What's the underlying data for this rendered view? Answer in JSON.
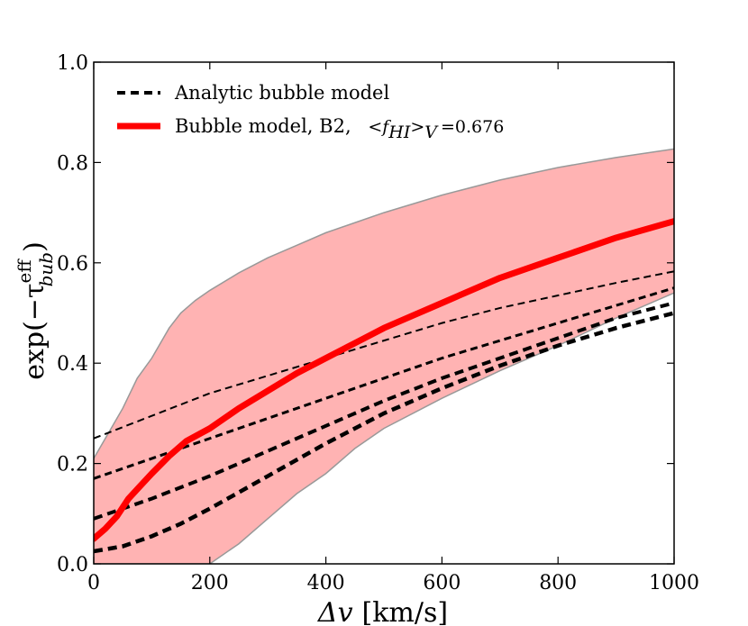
{
  "chart_data": {
    "type": "line",
    "xlabel_main": "Δv",
    "xlabel_unit": "[km/s]",
    "ylabel_main": "exp(−τ",
    "ylabel_sup": "eff",
    "ylabel_sub": "bub",
    "ylabel_close": ")",
    "xlim": [
      0,
      1000
    ],
    "ylim": [
      0.0,
      1.0
    ],
    "xticks": [
      0,
      200,
      400,
      600,
      800,
      1000
    ],
    "xtick_labels": [
      "0",
      "200",
      "400",
      "600",
      "800",
      "1000"
    ],
    "yticks": [
      0.0,
      0.2,
      0.4,
      0.6,
      0.8,
      1.0
    ],
    "ytick_labels": [
      "0.0",
      "0.2",
      "0.4",
      "0.6",
      "0.8",
      "1.0"
    ],
    "grid": false,
    "legend_placement": "top-left",
    "legend": [
      {
        "label": "Analytic bubble model",
        "style": "dashed",
        "color": "#000000"
      },
      {
        "label": "Bubble model, B2,",
        "math": "<f_HI>_V = 0.676",
        "math_prefix": "<f",
        "math_sub1": "HI",
        "math_mid": ">",
        "math_sub2": "V",
        "math_suffix": "=0.676",
        "style": "solid",
        "color": "#ff0000"
      }
    ],
    "colors": {
      "band_fill": "#ffb3b3",
      "band_edge": "#999999",
      "main": "#ff0000",
      "analytic": "#000000"
    },
    "band": {
      "x": [
        0,
        20,
        50,
        75,
        100,
        130,
        150,
        175,
        200,
        250,
        300,
        350,
        400,
        450,
        500,
        600,
        700,
        800,
        900,
        1000
      ],
      "upper": [
        0.21,
        0.25,
        0.31,
        0.37,
        0.41,
        0.47,
        0.5,
        0.525,
        0.545,
        0.58,
        0.61,
        0.635,
        0.66,
        0.68,
        0.7,
        0.735,
        0.765,
        0.79,
        0.81,
        0.827
      ],
      "lower": [
        0.0,
        0.0,
        0.0,
        0.0,
        0.0,
        0.0,
        0.0,
        0.0,
        0.0,
        0.04,
        0.09,
        0.14,
        0.18,
        0.23,
        0.27,
        0.33,
        0.385,
        0.435,
        0.49,
        0.54
      ]
    },
    "series": [
      {
        "kind": "main",
        "x": [
          0,
          20,
          40,
          60,
          80,
          100,
          130,
          160,
          200,
          250,
          300,
          350,
          400,
          450,
          500,
          600,
          700,
          800,
          900,
          1000
        ],
        "values": [
          0.05,
          0.07,
          0.095,
          0.13,
          0.155,
          0.18,
          0.215,
          0.245,
          0.27,
          0.31,
          0.345,
          0.38,
          0.41,
          0.44,
          0.47,
          0.52,
          0.57,
          0.61,
          0.65,
          0.683
        ]
      },
      {
        "kind": "analytic",
        "width": 2,
        "x": [
          0,
          100,
          200,
          300,
          400,
          500,
          600,
          700,
          800,
          900,
          1000
        ],
        "values": [
          0.25,
          0.295,
          0.34,
          0.375,
          0.41,
          0.445,
          0.48,
          0.51,
          0.535,
          0.56,
          0.583
        ]
      },
      {
        "kind": "analytic",
        "width": 3,
        "x": [
          0,
          100,
          200,
          300,
          400,
          500,
          600,
          700,
          800,
          900,
          1000
        ],
        "values": [
          0.17,
          0.21,
          0.25,
          0.29,
          0.33,
          0.37,
          0.41,
          0.445,
          0.48,
          0.515,
          0.55
        ]
      },
      {
        "kind": "analytic",
        "width": 4,
        "x": [
          0,
          100,
          200,
          300,
          400,
          500,
          600,
          700,
          800,
          900,
          1000
        ],
        "values": [
          0.09,
          0.13,
          0.175,
          0.225,
          0.275,
          0.325,
          0.37,
          0.41,
          0.45,
          0.49,
          0.52
        ]
      },
      {
        "kind": "analytic",
        "width": 4.5,
        "x": [
          0,
          50,
          100,
          150,
          200,
          300,
          400,
          500,
          600,
          700,
          800,
          900,
          1000
        ],
        "values": [
          0.025,
          0.035,
          0.055,
          0.08,
          0.11,
          0.175,
          0.24,
          0.3,
          0.35,
          0.395,
          0.435,
          0.47,
          0.5
        ]
      }
    ]
  }
}
